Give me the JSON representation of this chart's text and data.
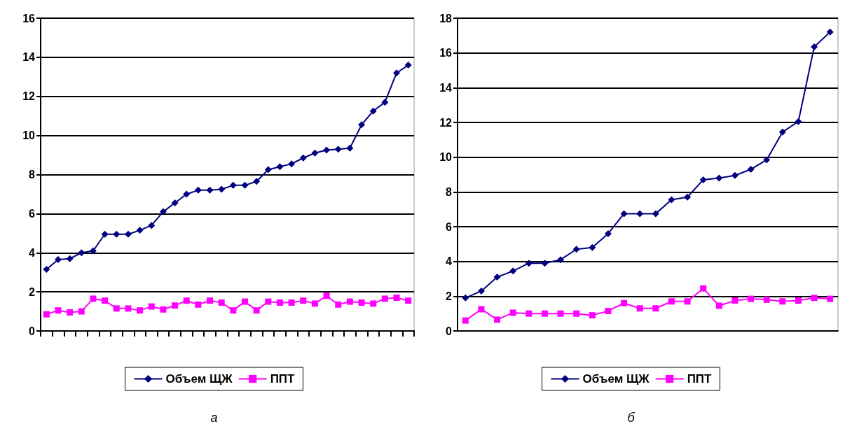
{
  "chart_data": [
    {
      "type": "line",
      "categories": [
        null,
        null,
        null,
        null,
        null,
        null,
        null,
        null,
        null,
        null,
        null,
        null,
        null,
        null,
        null,
        null,
        null,
        null,
        null,
        null,
        null,
        null,
        null,
        null,
        null,
        null,
        null,
        null,
        null,
        null,
        null,
        null
      ],
      "ylim": [
        0,
        16
      ],
      "yticks": [
        0,
        2,
        4,
        6,
        8,
        10,
        12,
        14,
        16
      ],
      "grid": "y",
      "legend": "bottom",
      "annotations": [
        "а"
      ],
      "series": [
        {
          "name": "Объем ЩЖ",
          "color": "#000080",
          "marker": "diamond",
          "values": [
            3.15,
            3.65,
            3.7,
            4.0,
            4.1,
            4.95,
            4.95,
            4.95,
            5.15,
            5.4,
            6.1,
            6.55,
            7.0,
            7.2,
            7.2,
            7.25,
            7.45,
            7.45,
            7.65,
            8.25,
            8.4,
            8.55,
            8.85,
            9.1,
            9.25,
            9.3,
            9.35,
            10.55,
            11.25,
            11.7,
            13.2,
            13.6
          ]
        },
        {
          "name": "ППТ",
          "color": "#ff00ff",
          "marker": "square",
          "values": [
            0.85,
            1.05,
            0.95,
            1.0,
            1.65,
            1.55,
            1.15,
            1.15,
            1.05,
            1.25,
            1.1,
            1.3,
            1.55,
            1.35,
            1.55,
            1.45,
            1.05,
            1.5,
            1.05,
            1.5,
            1.45,
            1.45,
            1.55,
            1.4,
            1.8,
            1.35,
            1.5,
            1.45,
            1.4,
            1.65,
            1.7,
            1.55
          ]
        }
      ]
    },
    {
      "type": "line",
      "categories": [
        null,
        null,
        null,
        null,
        null,
        null,
        null,
        null,
        null,
        null,
        null,
        null,
        null,
        null,
        null,
        null,
        null,
        null,
        null,
        null,
        null,
        null,
        null,
        null
      ],
      "ylim": [
        0,
        18
      ],
      "yticks": [
        0,
        2,
        4,
        6,
        8,
        10,
        12,
        14,
        16,
        18
      ],
      "grid": "y",
      "legend": "bottom",
      "annotations": [
        "б"
      ],
      "series": [
        {
          "name": "Объем ЩЖ",
          "color": "#000080",
          "marker": "diamond",
          "values": [
            1.9,
            2.3,
            3.1,
            3.45,
            3.9,
            3.9,
            4.1,
            4.7,
            4.8,
            5.6,
            6.75,
            6.75,
            6.75,
            7.55,
            7.7,
            8.7,
            8.8,
            8.95,
            9.3,
            9.85,
            11.45,
            12.05,
            16.35,
            17.2
          ]
        },
        {
          "name": "ППТ",
          "color": "#ff00ff",
          "marker": "square",
          "values": [
            0.6,
            1.25,
            0.65,
            1.05,
            1.0,
            1.0,
            1.0,
            1.0,
            0.9,
            1.15,
            1.6,
            1.3,
            1.3,
            1.7,
            1.7,
            2.45,
            1.45,
            1.75,
            1.85,
            1.8,
            1.7,
            1.75,
            1.9,
            1.85
          ]
        }
      ]
    }
  ]
}
